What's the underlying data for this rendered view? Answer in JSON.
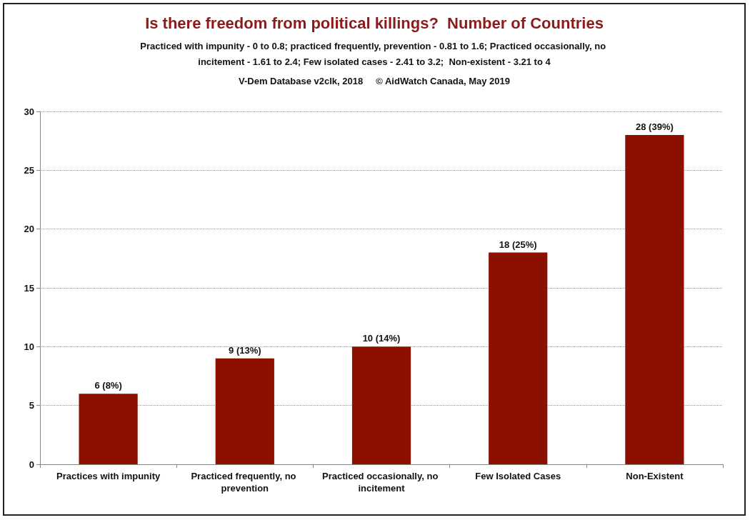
{
  "chart_data": {
    "type": "bar",
    "title": "Is there freedom from political killings?  Number of Countries",
    "subtitle": "Practiced with impunity - 0 to 0.8; practiced frequently, prevention - 0.81 to 1.6; Practiced occasionally, no incitement - 1.61 to 2.4; Few isolated cases - 2.41 to 3.2;  Non-existent - 3.21 to 4",
    "annotations": [
      "V-Dem Database v2clk, 2018     © AidWatch Canada, May 2019"
    ],
    "categories": [
      "Practices with impunity",
      "Practiced frequently, no prevention",
      "Practiced occasionally, no incitement",
      "Few Isolated Cases",
      "Non-Existent"
    ],
    "values": [
      6,
      9,
      10,
      18,
      28
    ],
    "value_labels": [
      "6 (8%)",
      "9 (13%)",
      "10 (14%)",
      "18 (25%)",
      "28 (39%)"
    ],
    "color": "#8b1000",
    "ylim": [
      0,
      30
    ],
    "yticks": [
      0,
      5,
      10,
      15,
      20,
      25,
      30
    ],
    "grid": "y"
  }
}
